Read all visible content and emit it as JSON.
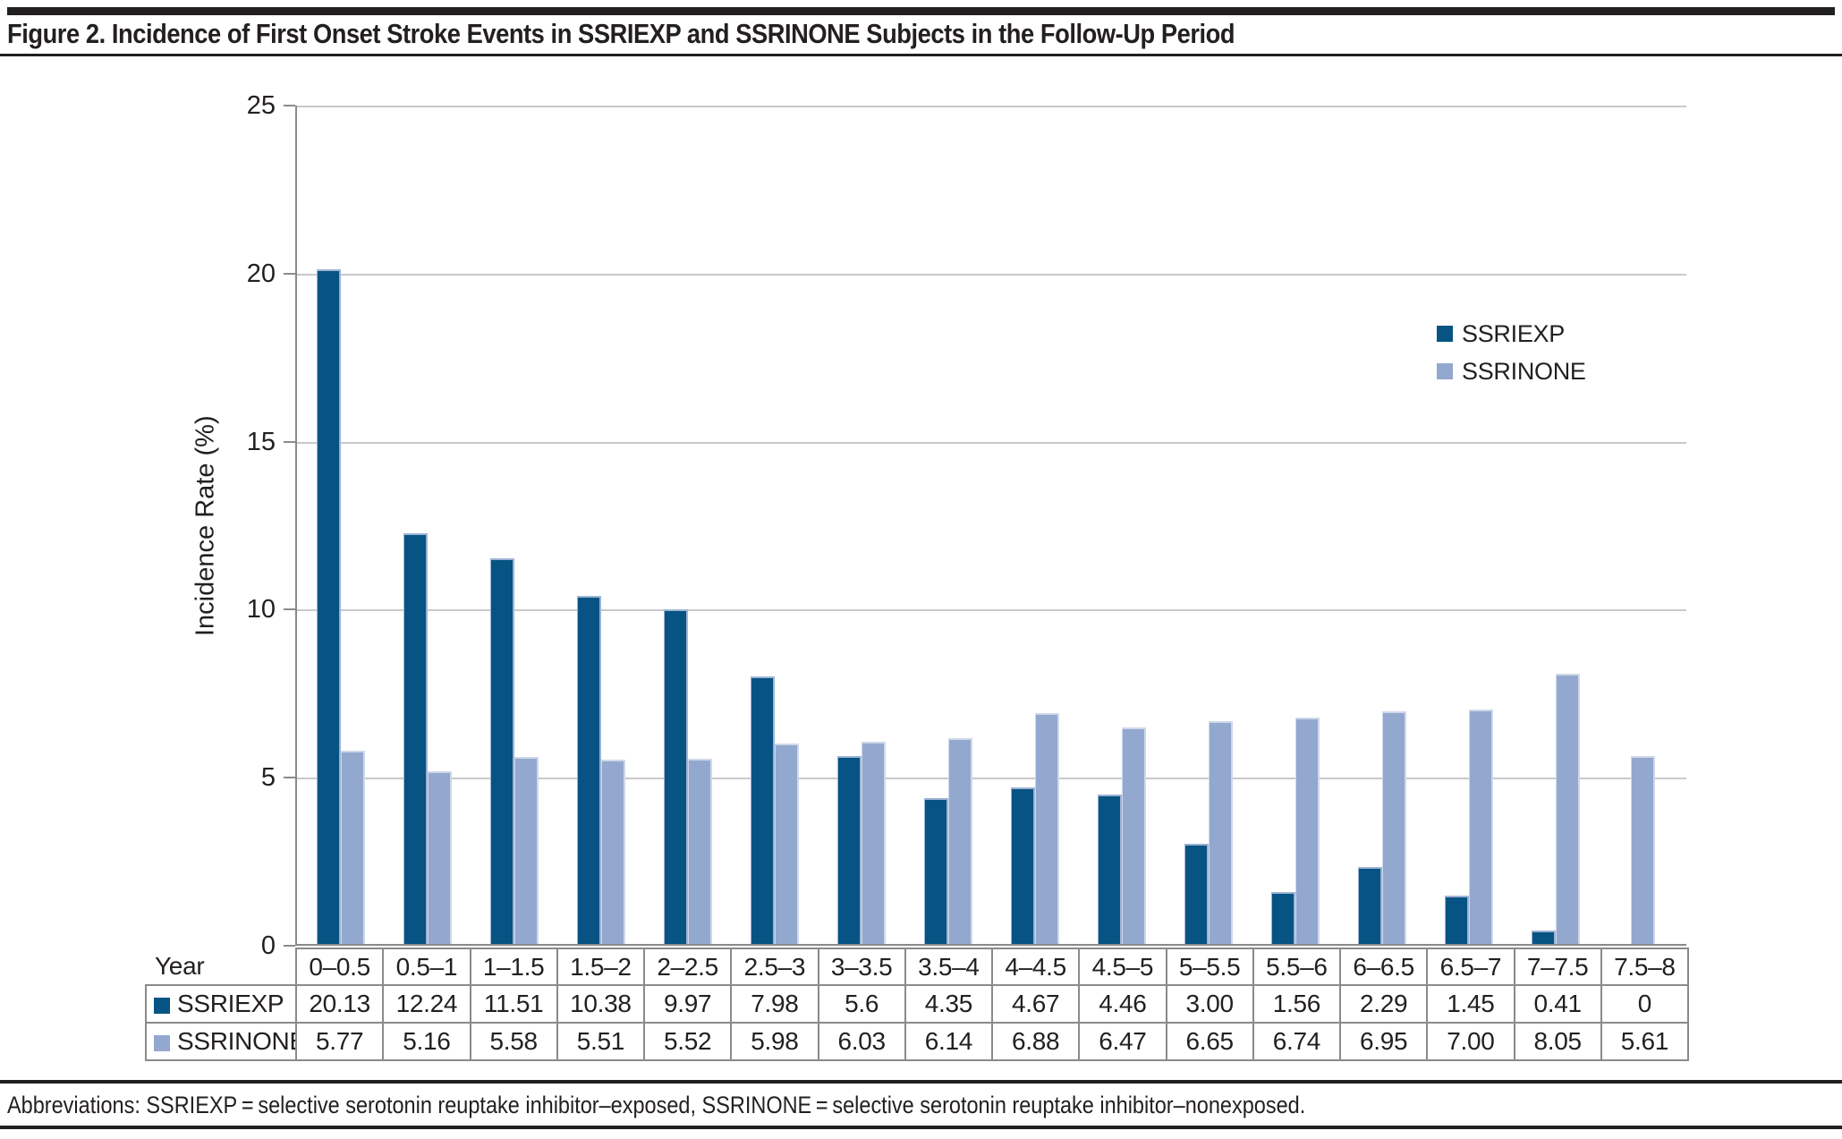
{
  "figure": {
    "title": "Figure 2. Incidence of First Onset Stroke Events in SSRIEXP and SSRINONE Subjects in the Follow-Up Period"
  },
  "chart_data": {
    "type": "bar",
    "categories": [
      "0–0.5",
      "0.5–1",
      "1–1.5",
      "1.5–2",
      "2–2.5",
      "2.5–3",
      "3–3.5",
      "3.5–4",
      "4–4.5",
      "4.5–5",
      "5–5.5",
      "5.5–6",
      "6–6.5",
      "6.5–7",
      "7–7.5",
      "7.5–8"
    ],
    "series": [
      {
        "name": "SSRIEXP",
        "values": [
          20.13,
          12.24,
          11.51,
          10.38,
          9.97,
          7.98,
          5.6,
          4.35,
          4.67,
          4.46,
          3.0,
          1.56,
          2.29,
          1.45,
          0.41,
          0
        ],
        "display": [
          "20.13",
          "12.24",
          "11.51",
          "10.38",
          "9.97",
          "7.98",
          "5.6",
          "4.35",
          "4.67",
          "4.46",
          "3.00",
          "1.56",
          "2.29",
          "1.45",
          "0.41",
          "0"
        ]
      },
      {
        "name": "SSRINONE",
        "values": [
          5.77,
          5.16,
          5.58,
          5.51,
          5.52,
          5.98,
          6.03,
          6.14,
          6.88,
          6.47,
          6.65,
          6.74,
          6.95,
          7.0,
          8.05,
          5.61
        ],
        "display": [
          "5.77",
          "5.16",
          "5.58",
          "5.51",
          "5.52",
          "5.98",
          "6.03",
          "6.14",
          "6.88",
          "6.47",
          "6.65",
          "6.74",
          "6.95",
          "7.00",
          "8.05",
          "5.61"
        ]
      }
    ],
    "title": "",
    "xlabel": "Year",
    "ylabel": "Incidence Rate (%)",
    "ylim": [
      0,
      25
    ],
    "yticks": [
      0,
      5,
      10,
      15,
      20,
      25
    ],
    "grid": true,
    "legend_position": "top-right"
  },
  "colors": {
    "series_fill": [
      "#075383",
      "#93a8ce"
    ],
    "series_border": [
      "#9db3d4",
      "#cfd8ea"
    ],
    "grid": "#c9c9c9",
    "axis": "#8a8a8a",
    "table_border": "#8a8a8a",
    "text": "#231f20",
    "rule": "#221f20"
  },
  "footer": {
    "abbreviations": "Abbreviations: SSRIEXP = selective serotonin reuptake inhibitor–exposed, SSRINONE = selective serotonin reuptake inhibitor–nonexposed."
  }
}
